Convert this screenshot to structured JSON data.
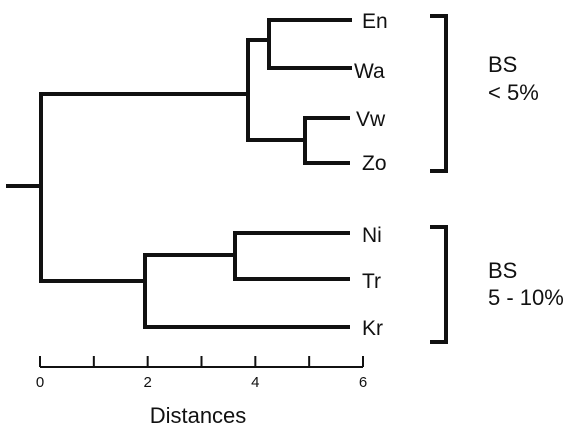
{
  "taxa": {
    "en": "En",
    "wa": "Wa",
    "vw": "Vw",
    "zo": "Zo",
    "ni": "Ni",
    "tr": "Tr",
    "kr": "Kr"
  },
  "groups": [
    {
      "line1": "BS",
      "line2": "< 5%"
    },
    {
      "line1": "BS",
      "line2": "5 - 10%"
    }
  ],
  "axis": {
    "title": "Distances",
    "ticks": [
      "0",
      "2",
      "4",
      "6"
    ],
    "range": [
      0,
      6
    ]
  }
}
